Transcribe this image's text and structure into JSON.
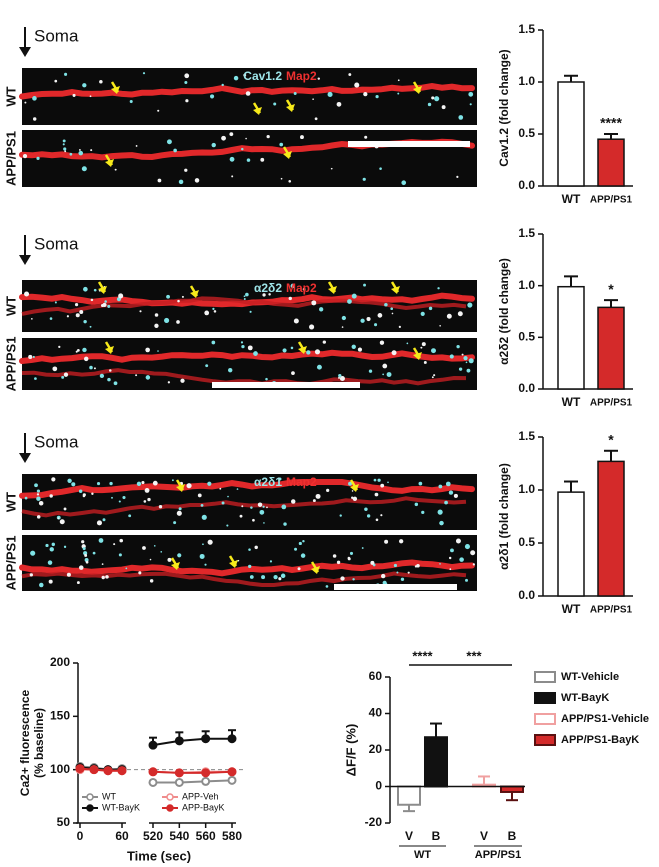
{
  "images": [
    {
      "soma": "Soma",
      "rows": [
        "WT",
        "APP/PS1"
      ],
      "stain": "Cav1.2",
      "marker": "Map2"
    },
    {
      "soma": "Soma",
      "rows": [
        "WT",
        "APP/PS1"
      ],
      "stain": "α2δ2",
      "marker": "Map2"
    },
    {
      "soma": "Soma",
      "rows": [
        "WT",
        "APP/PS1"
      ],
      "stain": "α2δ1",
      "marker": "Map2"
    }
  ],
  "chart_data": [
    {
      "type": "bar",
      "ylabel": "Cav1.2 (fold change)",
      "categories": [
        "WT",
        "APP/PS1"
      ],
      "values": [
        1.0,
        0.45
      ],
      "errors": [
        0.06,
        0.05
      ],
      "colors": [
        "#ffffff",
        "#d42a2a"
      ],
      "annotation": "****",
      "ylim": [
        0,
        1.5
      ],
      "yticks": [
        {
          "value": 0,
          "label": "0.0"
        },
        0.5,
        {
          "value": 1,
          "label": "1.0"
        },
        1.5
      ]
    },
    {
      "type": "bar",
      "ylabel": "α2δ2 (fold change)",
      "categories": [
        "WT",
        "APP/PS1"
      ],
      "values": [
        0.99,
        0.79
      ],
      "errors": [
        0.1,
        0.07
      ],
      "colors": [
        "#ffffff",
        "#d42a2a"
      ],
      "annotation": "*",
      "ylim": [
        0,
        1.5
      ],
      "yticks": [
        {
          "value": 0,
          "label": "0.0"
        },
        0.5,
        {
          "value": 1,
          "label": "1.0"
        },
        1.5
      ]
    },
    {
      "type": "bar",
      "ylabel": "α2δ1 (fold change)",
      "categories": [
        "WT",
        "APP/PS1"
      ],
      "values": [
        0.98,
        1.27
      ],
      "errors": [
        0.1,
        0.1
      ],
      "colors": [
        "#ffffff",
        "#d42a2a"
      ],
      "annotation": "*",
      "ylim": [
        0,
        1.5
      ],
      "yticks": [
        {
          "value": 0,
          "label": "0.0"
        },
        0.5,
        {
          "value": 1,
          "label": "1.0"
        },
        1.5
      ]
    },
    {
      "type": "line",
      "xlabel": "Time (sec)",
      "ylabel": [
        "Ca2+ fluorescence",
        "(% baseline)"
      ],
      "x": [
        0,
        20,
        40,
        60,
        520,
        540,
        560,
        580
      ],
      "xlim": [
        0,
        580
      ],
      "xbreak": [
        60,
        520
      ],
      "xticks": [
        0,
        60,
        520,
        540,
        560,
        580
      ],
      "ylim": [
        50,
        200
      ],
      "yticks": [
        50,
        100,
        150,
        200
      ],
      "baseline": 100,
      "series": [
        {
          "name": "WT",
          "color": "#8c8c8c",
          "filled": false,
          "values": [
            103,
            102,
            100,
            101,
            88,
            88,
            89,
            90
          ]
        },
        {
          "name": "WT-BayK",
          "color": "#111111",
          "filled": true,
          "values": [
            102,
            101,
            100,
            100,
            123,
            127,
            129,
            129
          ],
          "errors": [
            1,
            1,
            1,
            1,
            7,
            8,
            7,
            8
          ]
        },
        {
          "name": "APP-Veh",
          "color": "#f08c8c",
          "filled": false,
          "values": [
            100,
            100,
            99,
            99,
            98,
            97,
            98,
            98
          ]
        },
        {
          "name": "APP-BayK",
          "color": "#d42a2a",
          "filled": true,
          "values": [
            101,
            100,
            99,
            99,
            98,
            97,
            97,
            98
          ]
        }
      ]
    },
    {
      "type": "groupbar",
      "ylabel": "ΔF/F (%)",
      "categories": [
        "V",
        "B",
        "V",
        "B"
      ],
      "groups": [
        "WT",
        "APP/PS1"
      ],
      "values": [
        -10,
        27,
        1,
        -3
      ],
      "errors": [
        3.5,
        7.5,
        4.5,
        4.5
      ],
      "colors": [
        "#ffffff",
        "#111111",
        "#ffffff",
        "#d42a2a"
      ],
      "edges": [
        "#8c8c8c",
        "#111111",
        "#f0a0a0",
        "#5a1010"
      ],
      "legend": [
        "WT-Vehicle",
        "WT-BayK",
        "APP/PS1-Vehicle",
        "APP/PS1-BayK"
      ],
      "annotations": [
        "****",
        "***"
      ],
      "ylim": [
        -20,
        60
      ],
      "yticks": [
        -20,
        0,
        20,
        40,
        60
      ]
    }
  ]
}
